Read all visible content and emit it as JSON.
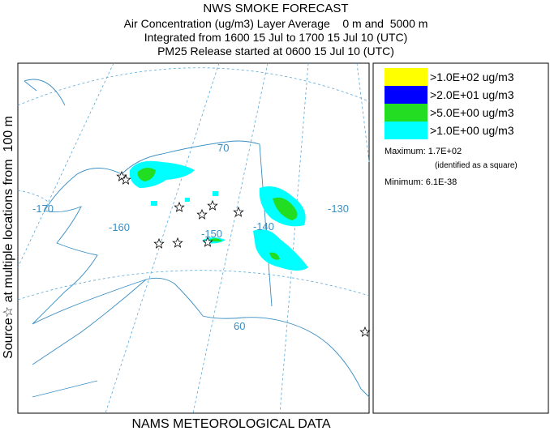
{
  "header": {
    "title": "NWS SMOKE FORECAST",
    "lines": [
      "Air Concentration (ug/m3) Layer Average    0 m and  5000 m",
      "Integrated from 1600 15 Jul to 1700 15 Jul 10 (UTC)",
      "PM25 Release started at 0600 15 Jul 10 (UTC)"
    ]
  },
  "side_label": "Source☆ at multiple locations from  100 m",
  "footer": "NAMS METEOROLOGICAL DATA",
  "map": {
    "graticule_labels": [
      "70",
      "-170",
      "-160",
      "-150",
      "-140",
      "-130",
      "60"
    ]
  },
  "legend": {
    "items": [
      {
        "label": ">1.0E+02 ug/m3",
        "color": "#ffff00"
      },
      {
        "label": ">2.0E+01 ug/m3",
        "color": "#0000ff"
      },
      {
        "label": ">5.0E+00 ug/m3",
        "color": "#22dd22"
      },
      {
        "label": ">1.0E+00 ug/m3",
        "color": "#00ffff"
      }
    ],
    "maximum": "Maximum: 1.7E+02",
    "max_note": "(identified as a square)",
    "minimum": "Minimum: 6.1E-38"
  }
}
